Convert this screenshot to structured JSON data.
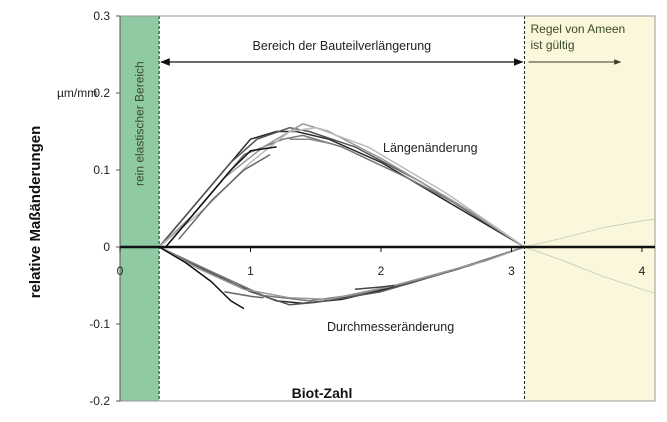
{
  "chart_data": {
    "type": "line",
    "title": "",
    "xlabel": "Biot-Zahl",
    "ylabel": "relative Maßänderungen",
    "yunit": "µm/mm",
    "xlim": [
      0,
      4.1
    ],
    "ylim": [
      -0.2,
      0.3
    ],
    "x_ticks": [
      "0",
      "1",
      "2",
      "3",
      "4"
    ],
    "y_ticks": [
      "-0.2",
      "-0.1",
      "0",
      "0.1",
      "0.2",
      "0.3"
    ],
    "grid": false,
    "zones": {
      "elastic": {
        "label": "rein elastischer Bereich",
        "x_range": [
          0,
          0.3
        ],
        "color": "#8fcaa3"
      },
      "extension": {
        "label": "Bereich der Bauteilverlängerung",
        "x_range": [
          0.3,
          3.1
        ]
      },
      "ameen": {
        "label_line1": "Regel von Ameen",
        "label_line2": "ist gültig",
        "x_range": [
          3.1,
          4.1
        ],
        "color": "#fbf7dc"
      }
    },
    "annotations": {
      "length": "Längenänderung",
      "diameter": "Durchmesseränderung"
    },
    "series": [
      {
        "group": "length",
        "color": "#2a2a2a",
        "points": [
          [
            0.3,
            0
          ],
          [
            0.55,
            0.05
          ],
          [
            0.8,
            0.1
          ],
          [
            1.0,
            0.14
          ],
          [
            1.2,
            0.15
          ],
          [
            1.35,
            0.15
          ],
          [
            1.6,
            0.14
          ],
          [
            2.0,
            0.11
          ],
          [
            2.5,
            0.06
          ],
          [
            3.1,
            0
          ]
        ]
      },
      {
        "group": "length",
        "color": "#555555",
        "points": [
          [
            0.3,
            0
          ],
          [
            0.6,
            0.06
          ],
          [
            0.85,
            0.11
          ],
          [
            1.05,
            0.14
          ],
          [
            1.3,
            0.155
          ],
          [
            1.45,
            0.15
          ],
          [
            1.8,
            0.13
          ],
          [
            2.3,
            0.085
          ],
          [
            3.1,
            0
          ]
        ]
      },
      {
        "group": "length",
        "color": "#777777",
        "points": [
          [
            0.3,
            0
          ],
          [
            0.5,
            0.03
          ],
          [
            0.75,
            0.08
          ],
          [
            0.95,
            0.12
          ],
          [
            1.25,
            0.14
          ],
          [
            1.4,
            0.145
          ],
          [
            1.7,
            0.13
          ],
          [
            2.2,
            0.09
          ],
          [
            2.7,
            0.045
          ],
          [
            3.1,
            0
          ]
        ]
      },
      {
        "group": "length",
        "color": "#999999",
        "points": [
          [
            0.3,
            0
          ],
          [
            0.55,
            0.04
          ],
          [
            0.8,
            0.09
          ],
          [
            1.1,
            0.13
          ],
          [
            1.4,
            0.16
          ],
          [
            1.6,
            0.15
          ],
          [
            2.0,
            0.115
          ],
          [
            2.6,
            0.055
          ],
          [
            3.1,
            0
          ]
        ]
      },
      {
        "group": "length",
        "color": "#bbbbbb",
        "points": [
          [
            0.3,
            0
          ],
          [
            0.65,
            0.05
          ],
          [
            1.0,
            0.11
          ],
          [
            1.3,
            0.15
          ],
          [
            1.5,
            0.155
          ],
          [
            1.9,
            0.13
          ],
          [
            2.5,
            0.07
          ],
          [
            3.1,
            0
          ]
        ]
      },
      {
        "group": "length",
        "color": "#111111",
        "points": [
          [
            0.35,
            0
          ],
          [
            0.6,
            0.05
          ],
          [
            0.85,
            0.1
          ],
          [
            1.0,
            0.125
          ],
          [
            1.2,
            0.13
          ]
        ]
      },
      {
        "group": "length",
        "color": "#666666",
        "points": [
          [
            0.45,
            0.01
          ],
          [
            0.7,
            0.06
          ],
          [
            0.95,
            0.1
          ],
          [
            1.15,
            0.12
          ]
        ]
      },
      {
        "group": "length",
        "color": "#888888",
        "points": [
          [
            1.3,
            0.14
          ],
          [
            1.45,
            0.14
          ],
          [
            1.6,
            0.135
          ]
        ]
      },
      {
        "group": "diameter",
        "color": "#2a2a2a",
        "points": [
          [
            0.3,
            0
          ],
          [
            0.6,
            -0.025
          ],
          [
            0.9,
            -0.05
          ],
          [
            1.2,
            -0.07
          ],
          [
            1.4,
            -0.073
          ],
          [
            1.7,
            -0.068
          ],
          [
            2.2,
            -0.048
          ],
          [
            2.7,
            -0.023
          ],
          [
            3.1,
            0
          ]
        ]
      },
      {
        "group": "diameter",
        "color": "#555555",
        "points": [
          [
            0.3,
            0
          ],
          [
            0.65,
            -0.03
          ],
          [
            1.0,
            -0.058
          ],
          [
            1.3,
            -0.075
          ],
          [
            1.5,
            -0.072
          ],
          [
            2.0,
            -0.058
          ],
          [
            2.6,
            -0.028
          ],
          [
            3.1,
            0
          ]
        ]
      },
      {
        "group": "diameter",
        "color": "#777777",
        "points": [
          [
            0.3,
            0
          ],
          [
            0.7,
            -0.032
          ],
          [
            1.1,
            -0.063
          ],
          [
            1.45,
            -0.07
          ],
          [
            1.8,
            -0.062
          ],
          [
            2.4,
            -0.038
          ],
          [
            3.1,
            0
          ]
        ]
      },
      {
        "group": "diameter",
        "color": "#999999",
        "points": [
          [
            0.3,
            0
          ],
          [
            0.6,
            -0.028
          ],
          [
            0.95,
            -0.055
          ],
          [
            1.3,
            -0.066
          ],
          [
            1.6,
            -0.068
          ],
          [
            2.1,
            -0.05
          ],
          [
            2.8,
            -0.018
          ],
          [
            3.1,
            0
          ]
        ]
      },
      {
        "group": "diameter",
        "color": "#111111",
        "points": [
          [
            0.3,
            0
          ],
          [
            0.5,
            -0.02
          ],
          [
            0.7,
            -0.045
          ],
          [
            0.85,
            -0.07
          ],
          [
            0.95,
            -0.08
          ]
        ]
      },
      {
        "group": "diameter",
        "color": "#444444",
        "points": [
          [
            1.8,
            -0.055
          ],
          [
            2.0,
            -0.052
          ],
          [
            2.1,
            -0.05
          ]
        ]
      },
      {
        "group": "diameter",
        "color": "#666666",
        "points": [
          [
            0.8,
            -0.058
          ],
          [
            1.0,
            -0.064
          ],
          [
            1.1,
            -0.066
          ]
        ]
      },
      {
        "group": "ameen",
        "color": "#c8d4c0",
        "points": [
          [
            3.1,
            0
          ],
          [
            3.4,
            0.012
          ],
          [
            3.7,
            0.025
          ],
          [
            4.0,
            0.034
          ],
          [
            4.1,
            0.036
          ]
        ]
      },
      {
        "group": "ameen",
        "color": "#c8d4c0",
        "points": [
          [
            3.1,
            0
          ],
          [
            3.4,
            -0.018
          ],
          [
            3.7,
            -0.038
          ],
          [
            4.0,
            -0.055
          ],
          [
            4.1,
            -0.06
          ]
        ]
      }
    ]
  }
}
